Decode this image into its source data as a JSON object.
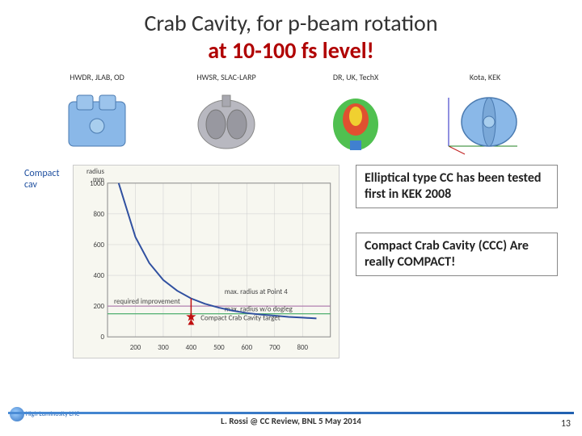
{
  "title_line1": "Crab Cavity, for p-beam rotation",
  "title_line2": "at 10-100 fs level!",
  "cavities": [
    {
      "label": "HWDR, JLAB, OD"
    },
    {
      "label": "HWSR, SLAC-LARP"
    },
    {
      "label": "DR, UK, TechX"
    },
    {
      "label": "Kota, KEK"
    }
  ],
  "chart": {
    "left_caption": "Compact cav",
    "ylabel_top": "radius",
    "ylabel_units": "mm",
    "xrange": [
      100,
      900
    ],
    "yrange": [
      0,
      1000
    ],
    "xticks": [
      200,
      300,
      400,
      500,
      600,
      700,
      800
    ],
    "yticks": [
      0,
      200,
      400,
      600,
      800,
      1000
    ],
    "curve": [
      [
        140,
        1000
      ],
      [
        200,
        650
      ],
      [
        250,
        480
      ],
      [
        300,
        370
      ],
      [
        350,
        300
      ],
      [
        400,
        250
      ],
      [
        450,
        215
      ],
      [
        500,
        190
      ],
      [
        550,
        170
      ],
      [
        600,
        155
      ],
      [
        650,
        145
      ],
      [
        700,
        138
      ],
      [
        750,
        130
      ],
      [
        800,
        125
      ],
      [
        850,
        120
      ]
    ],
    "curve_color": "#3050a0",
    "marker_x": 400,
    "marker_y": 130,
    "marker_color": "#c01010",
    "hline1_y": 200,
    "hline1_label": "required improvement",
    "hline1_color": "#b080b0",
    "hline2_y": 150,
    "hline2_label": "max. radius w/o dogleg",
    "hline2_color": "#50b070",
    "hline3_y_label": "max. radius at Point 4",
    "target_label": "Compact Crab Cavity target",
    "bg_color": "#f7f7f0",
    "grid_color": "#cccccc"
  },
  "annotation1": "Elliptical type CC has been tested first in KEK 2008",
  "annotation2": "Compact Crab Cavity (CCC) Are really COMPACT!",
  "footer": "L. Rossi @ CC Review, BNL 5 May 2014",
  "page_number": "13",
  "logo_text": "High Luminosity LHC"
}
